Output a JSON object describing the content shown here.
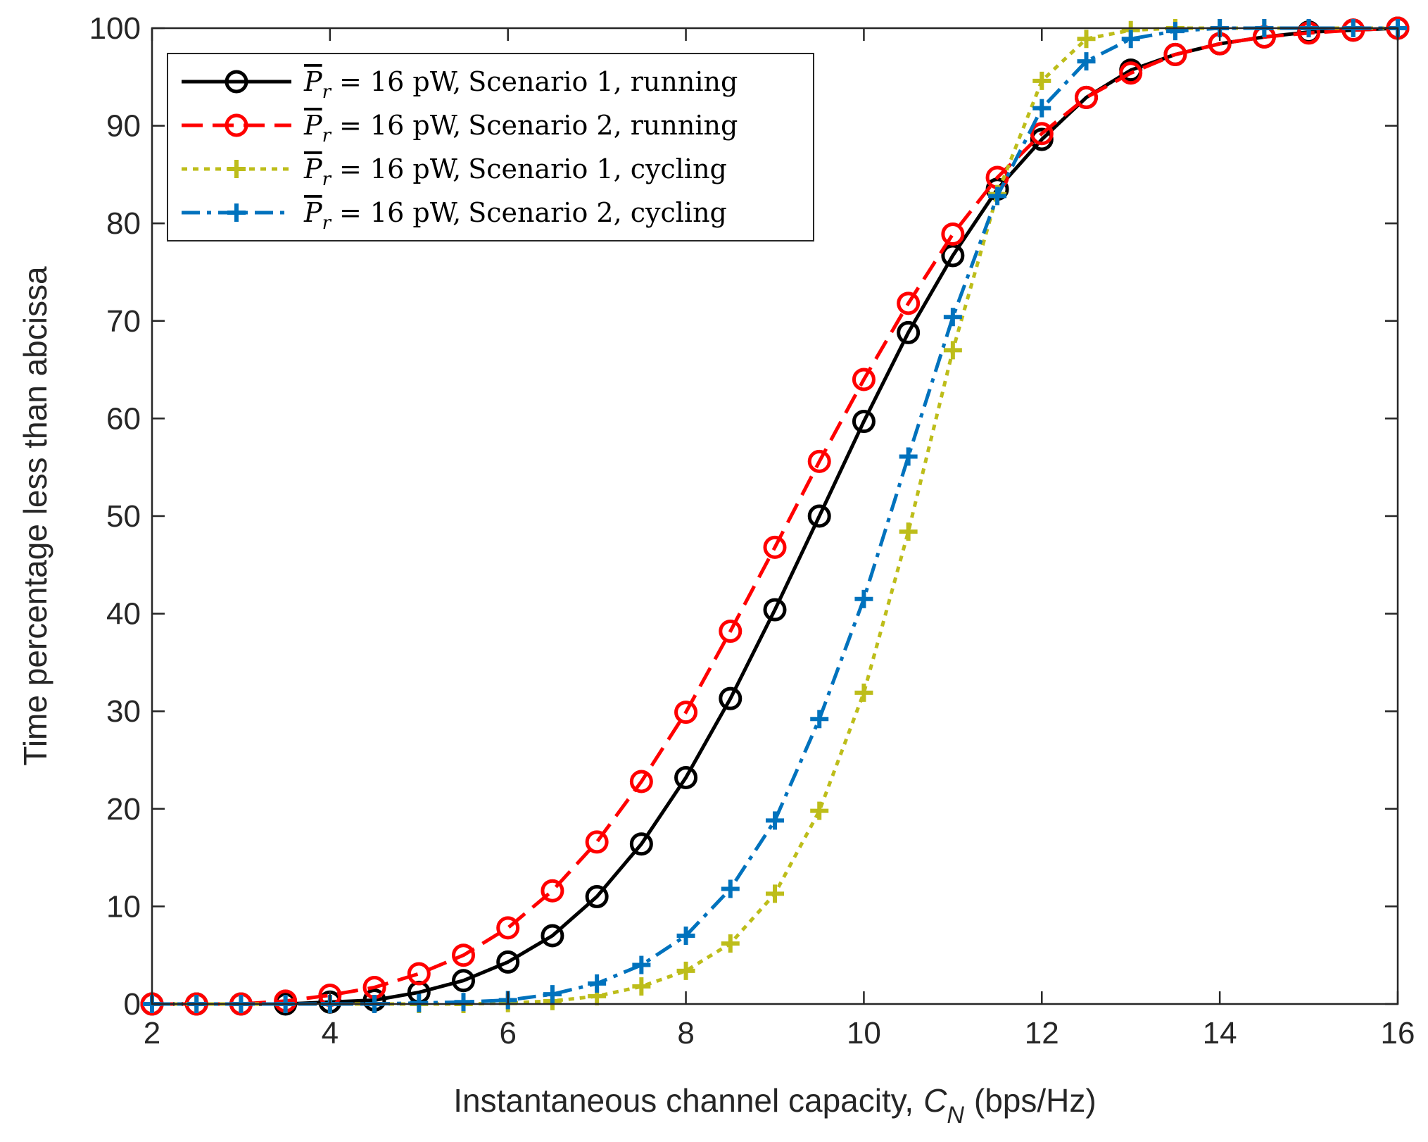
{
  "chart_data": {
    "type": "line",
    "title": "",
    "xlabel": "Instantaneous channel capacity,",
    "xlabel_symbol": "C",
    "xlabel_subscript": "N",
    "xlabel_unit": "(bps/Hz)",
    "ylabel": "Time percentage less than abcissa",
    "xlim": [
      2,
      16
    ],
    "ylim": [
      0,
      100
    ],
    "xticks": [
      2,
      4,
      6,
      8,
      10,
      12,
      14,
      16
    ],
    "yticks": [
      0,
      10,
      20,
      30,
      40,
      50,
      60,
      70,
      80,
      90,
      100
    ],
    "grid": false,
    "legend_position": "top-left",
    "x": [
      2,
      2.5,
      3,
      3.5,
      4,
      4.5,
      5,
      5.5,
      6,
      6.5,
      7,
      7.5,
      8,
      8.5,
      9,
      9.5,
      10,
      10.5,
      11,
      11.5,
      12,
      12.5,
      13,
      13.5,
      14,
      14.5,
      15,
      15.5,
      16
    ],
    "series": [
      {
        "name": "Scenario 1, running",
        "legend_symbol": "P",
        "legend_subscript": "r",
        "legend_value": "= 16 pW,",
        "color": "#000000",
        "line_style": "solid",
        "marker": "circle",
        "values": [
          0,
          0,
          0,
          0,
          0.2,
          0.4,
          1.2,
          2.4,
          4.3,
          7,
          11,
          16.4,
          23.2,
          31.3,
          40.4,
          50,
          59.7,
          68.8,
          76.7,
          83.5,
          88.6,
          92.9,
          95.7,
          97.3,
          98.4,
          99.1,
          99.6,
          99.8,
          100
        ]
      },
      {
        "name": "Scenario 2, running",
        "legend_symbol": "P",
        "legend_subscript": "r",
        "legend_value": "= 16 pW,",
        "color": "#ff0000",
        "line_style": "dashed",
        "marker": "circle",
        "values": [
          0,
          0,
          0,
          0.3,
          0.9,
          1.7,
          3.1,
          5,
          7.8,
          11.6,
          16.6,
          22.8,
          29.9,
          38.2,
          46.8,
          55.6,
          64,
          71.8,
          78.9,
          84.7,
          89.2,
          92.9,
          95.4,
          97.3,
          98.4,
          99.1,
          99.5,
          99.8,
          100
        ]
      },
      {
        "name": "Scenario 1, cycling",
        "legend_symbol": "P",
        "legend_subscript": "r",
        "legend_value": "= 16 pW,",
        "color": "#bdbd1a",
        "line_style": "dotted",
        "marker": "plus",
        "values": [
          0,
          0,
          0,
          0,
          0,
          0,
          0,
          0,
          0.1,
          0.3,
          0.8,
          1.8,
          3.4,
          6.2,
          11.3,
          19.8,
          31.9,
          48.4,
          67,
          83,
          94.6,
          98.9,
          99.8,
          100,
          100,
          100,
          100,
          100,
          100
        ]
      },
      {
        "name": "Scenario 2, cycling",
        "legend_symbol": "P",
        "legend_subscript": "r",
        "legend_value": "= 16 pW,",
        "color": "#0072bd",
        "line_style": "dashdot",
        "marker": "plus",
        "values": [
          0,
          0,
          0,
          0,
          0,
          0,
          0.1,
          0.2,
          0.4,
          1,
          2.1,
          4,
          7,
          11.8,
          18.8,
          29.2,
          41.5,
          56.1,
          70.4,
          82.8,
          91.8,
          96.6,
          98.9,
          99.7,
          100,
          100,
          100,
          100,
          100
        ]
      }
    ]
  }
}
